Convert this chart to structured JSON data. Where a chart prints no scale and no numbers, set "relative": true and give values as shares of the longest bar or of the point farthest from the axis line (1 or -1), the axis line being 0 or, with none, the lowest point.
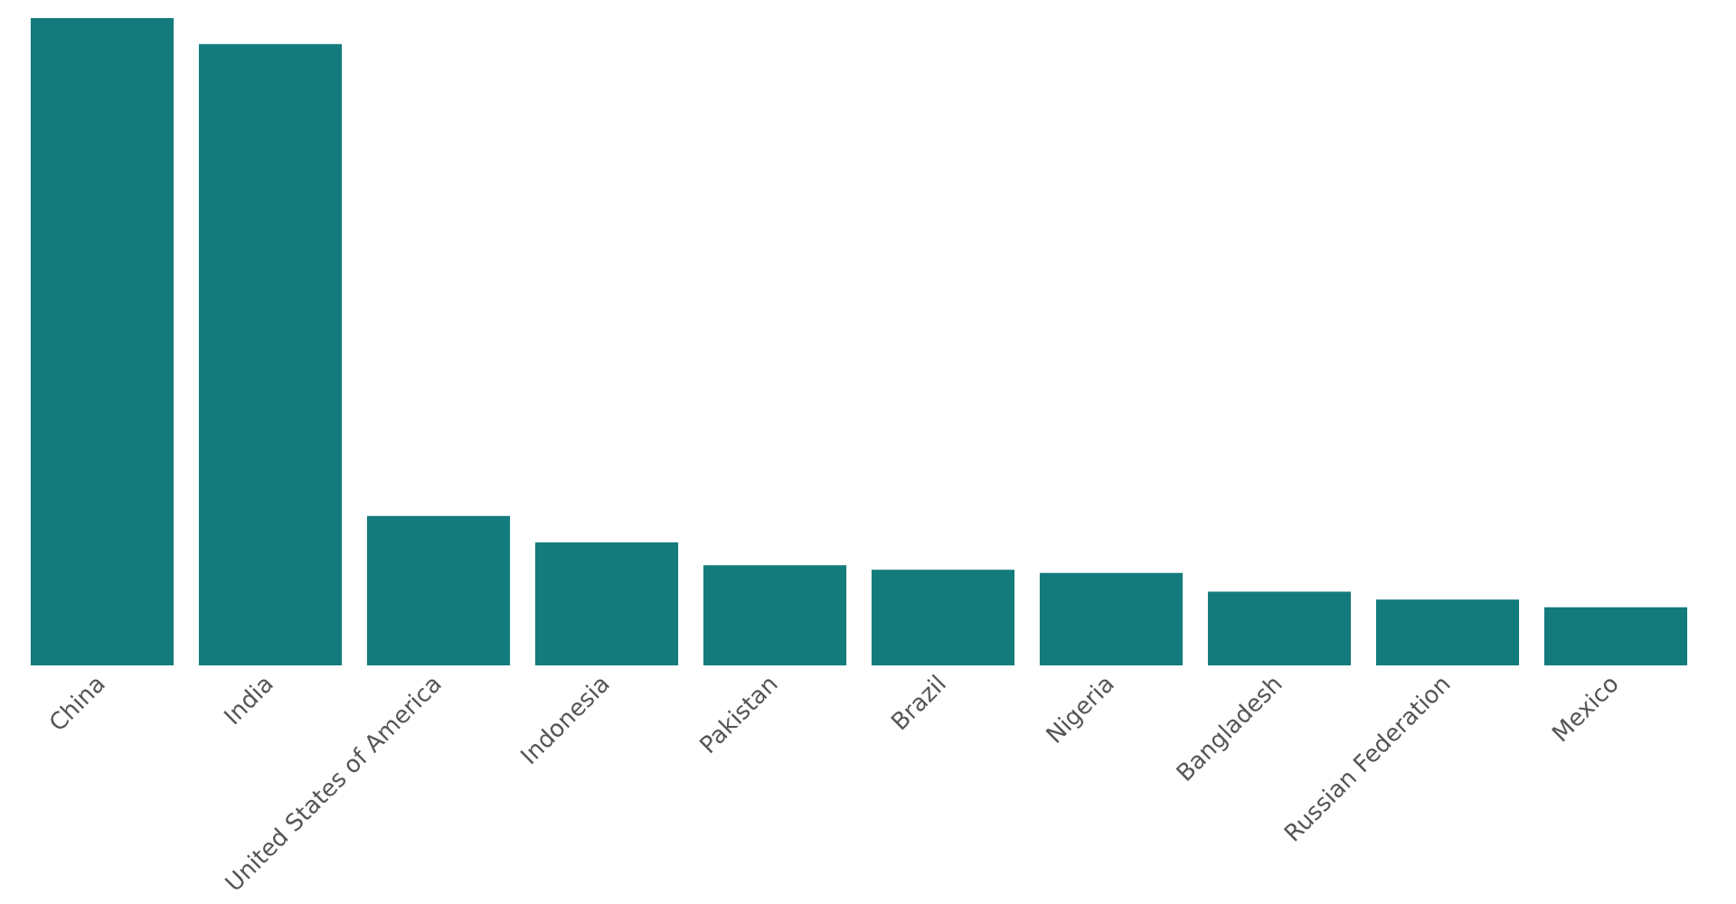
{
  "chart_data": {
    "type": "bar",
    "relative": true,
    "color": "#147b7d",
    "categories": [
      "China",
      "India",
      "United States of America",
      "Indonesia",
      "Pakistan",
      "Brazil",
      "Nigeria",
      "Bangladesh",
      "Russian Federation",
      "Mexico"
    ],
    "values": [
      1,
      0.96,
      0.231,
      0.19,
      0.155,
      0.148,
      0.143,
      0.114,
      0.102,
      0.09
    ],
    "grid": false,
    "legend": false
  }
}
